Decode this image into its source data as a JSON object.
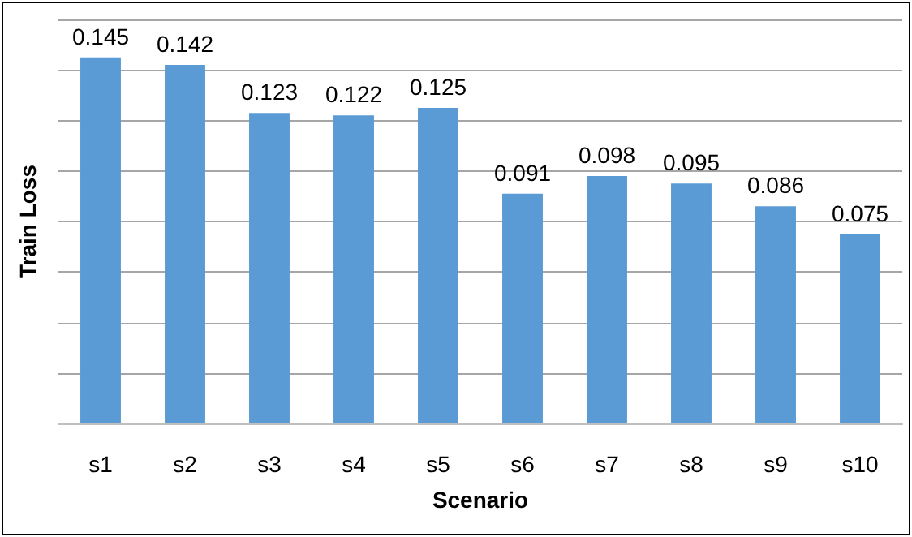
{
  "chart_data": {
    "type": "bar",
    "xlabel": "Scenario",
    "ylabel": "Train Loss",
    "categories": [
      "s1",
      "s2",
      "s3",
      "s4",
      "s5",
      "s6",
      "s7",
      "s8",
      "s9",
      "s10"
    ],
    "values": [
      0.145,
      0.142,
      0.123,
      0.122,
      0.125,
      0.091,
      0.098,
      0.095,
      0.086,
      0.075
    ],
    "color": "#5b9bd5",
    "data_labels": true,
    "grid": "y",
    "tick_labels": "x",
    "ylim": [
      0,
      0.16
    ],
    "yticks": [
      {
        "value": 0,
        "label": null
      },
      {
        "value": 0.02,
        "label": null
      },
      {
        "value": 0.04,
        "label": null
      },
      {
        "value": 0.06,
        "label": null
      },
      {
        "value": 0.08,
        "label": null
      },
      {
        "value": 0.1,
        "label": null
      },
      {
        "value": 0.12,
        "label": null
      },
      {
        "value": 0.14,
        "label": null
      },
      {
        "value": 0.16,
        "label": null
      }
    ]
  }
}
